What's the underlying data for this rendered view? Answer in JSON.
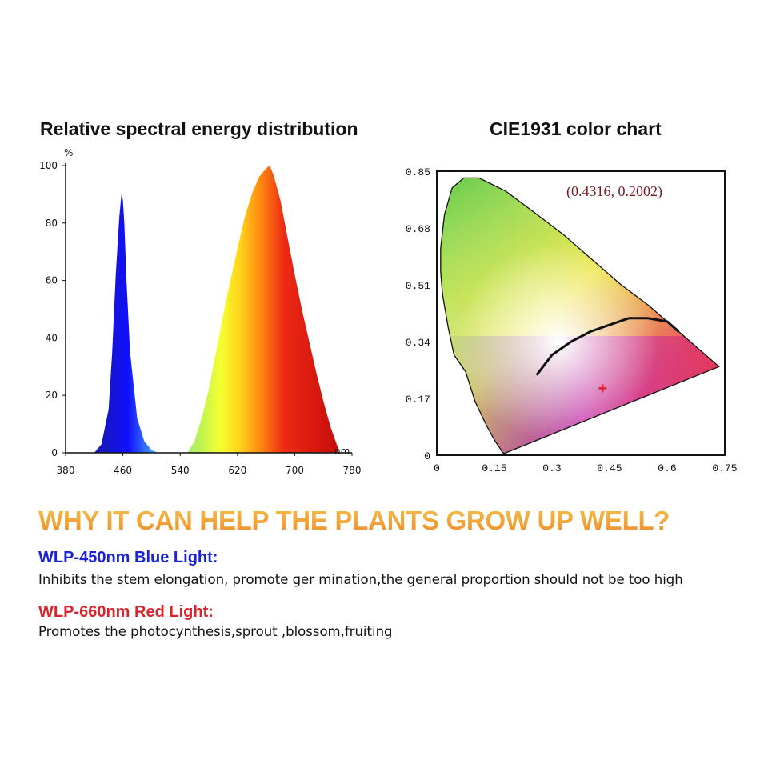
{
  "spectrum": {
    "title": "Relative spectral energy distribution",
    "y_unit": "%",
    "x_unit": "nm"
  },
  "cie": {
    "title": "CIE1931 color chart",
    "coordinate_label": "(0.4316,  0.2002)"
  },
  "chart_data": [
    {
      "type": "area",
      "title": "Relative spectral energy distribution",
      "xlabel": "nm",
      "ylabel": "%",
      "xlim": [
        380,
        780
      ],
      "ylim": [
        0,
        100
      ],
      "x_ticks": [
        380,
        460,
        540,
        620,
        700,
        780
      ],
      "y_ticks": [
        0,
        20,
        40,
        60,
        80,
        100
      ],
      "x": [
        420,
        430,
        440,
        445,
        450,
        455,
        458,
        460,
        462,
        465,
        470,
        480,
        490,
        500,
        510,
        550,
        560,
        570,
        580,
        590,
        600,
        610,
        620,
        630,
        640,
        650,
        660,
        665,
        670,
        680,
        690,
        700,
        710,
        720,
        730,
        740,
        750,
        760
      ],
      "values": [
        0,
        3,
        15,
        35,
        62,
        82,
        90,
        88,
        80,
        60,
        35,
        12,
        4,
        1,
        0,
        0,
        4,
        12,
        22,
        35,
        48,
        60,
        71,
        82,
        90,
        96,
        99,
        100,
        97,
        88,
        75,
        62,
        50,
        39,
        28,
        18,
        9,
        2
      ],
      "peaks": [
        {
          "x": 458,
          "y": 90
        },
        {
          "x": 665,
          "y": 100
        }
      ]
    },
    {
      "type": "scatter",
      "title": "CIE1931 color chart",
      "xlim": [
        0,
        0.75
      ],
      "ylim": [
        0,
        0.85
      ],
      "x_ticks": [
        "0",
        "0.15",
        "0.3",
        "0.45",
        "0.6",
        "0.75"
      ],
      "y_ticks": [
        "0",
        "0.17",
        "0.34",
        "0.51",
        "0.68",
        "0.85"
      ],
      "locus": [
        [
          0.175,
          0.005
        ],
        [
          0.17,
          0.01
        ],
        [
          0.165,
          0.02
        ],
        [
          0.153,
          0.04
        ],
        [
          0.129,
          0.09
        ],
        [
          0.1,
          0.16
        ],
        [
          0.075,
          0.25
        ],
        [
          0.045,
          0.3
        ],
        [
          0.03,
          0.38
        ],
        [
          0.015,
          0.48
        ],
        [
          0.01,
          0.55
        ],
        [
          0.01,
          0.62
        ],
        [
          0.02,
          0.72
        ],
        [
          0.04,
          0.8
        ],
        [
          0.07,
          0.83
        ],
        [
          0.11,
          0.83
        ],
        [
          0.18,
          0.79
        ],
        [
          0.25,
          0.73
        ],
        [
          0.33,
          0.66
        ],
        [
          0.4,
          0.59
        ],
        [
          0.48,
          0.51
        ],
        [
          0.55,
          0.45
        ],
        [
          0.62,
          0.38
        ],
        [
          0.68,
          0.32
        ],
        [
          0.735,
          0.265
        ]
      ],
      "planckian": [
        [
          0.26,
          0.24
        ],
        [
          0.3,
          0.3
        ],
        [
          0.35,
          0.34
        ],
        [
          0.4,
          0.37
        ],
        [
          0.45,
          0.39
        ],
        [
          0.5,
          0.41
        ],
        [
          0.55,
          0.41
        ],
        [
          0.6,
          0.4
        ],
        [
          0.63,
          0.37
        ]
      ],
      "point": {
        "x": 0.4316,
        "y": 0.2002,
        "label": "(0.4316,  0.2002)",
        "color": "#d8262e"
      }
    }
  ],
  "headline": "WHY IT CAN HELP THE PLANTS GROW UP WELL?",
  "items": [
    {
      "title": "WLP-450nm Blue Light:",
      "color": "#1a22d6",
      "desc": "Inhibits the stem elongation, promote ger mination,the general proportion should not be too high"
    },
    {
      "title": "WLP-660nm Red Light:",
      "color": "#d8262e",
      "desc": "Promotes the photocynthesis,sprout ,blossom,fruiting"
    }
  ]
}
